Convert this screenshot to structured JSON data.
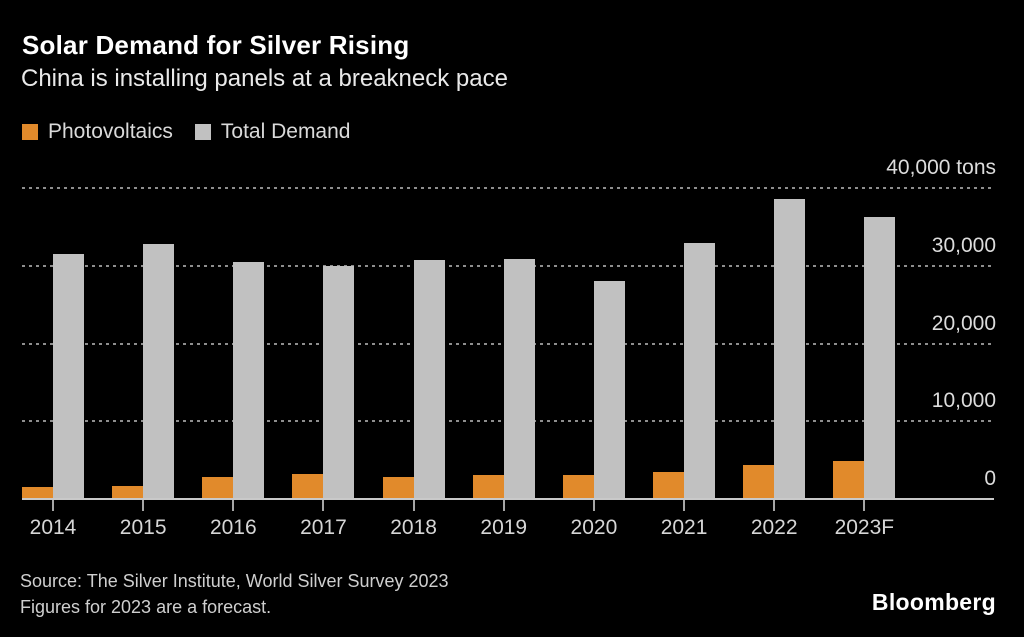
{
  "header": {
    "title": "Solar Demand for Silver Rising",
    "subtitle": "China is installing panels at a breakneck pace"
  },
  "legend": {
    "items": [
      {
        "label": "Photovoltaics",
        "color": "#E18A2B"
      },
      {
        "label": "Total Demand",
        "color": "#C1C1C1"
      }
    ]
  },
  "chart_data": {
    "type": "bar",
    "title": "Solar Demand for Silver Rising",
    "subtitle": "China is installing panels at a breakneck pace",
    "unit": "tons",
    "categories": [
      "2014",
      "2015",
      "2016",
      "2017",
      "2018",
      "2019",
      "2020",
      "2021",
      "2022",
      "2023F"
    ],
    "series": [
      {
        "name": "Photovoltaics",
        "color": "#E18A2B",
        "values": [
          1500,
          1700,
          2900,
          3200,
          2900,
          3100,
          3100,
          3500,
          4400,
          4900
        ]
      },
      {
        "name": "Total Demand",
        "color": "#C1C1C1",
        "values": [
          31500,
          32800,
          30500,
          30000,
          30800,
          30900,
          28100,
          32900,
          38600,
          36300
        ]
      }
    ],
    "ylim": [
      0,
      40000
    ],
    "yticks": [
      {
        "value": 0,
        "label": "0"
      },
      {
        "value": 10000,
        "label": "10,000"
      },
      {
        "value": 20000,
        "label": "20,000"
      },
      {
        "value": 30000,
        "label": "30,000"
      },
      {
        "value": 40000,
        "label": "40,000 tons"
      }
    ],
    "grid": "horizontal-dashed",
    "legend_position": "top-left"
  },
  "footer": {
    "source": "Source: The Silver Institute, World Silver Survey 2023",
    "note": "Figures for 2023 are a forecast.",
    "brand": "Bloomberg"
  },
  "colors": {
    "background": "#000000",
    "photovoltaics": "#E18A2B",
    "total_demand": "#C1C1C1",
    "gridline": "#8e8e8e",
    "axis_line": "#c9c9c9",
    "text_primary": "#ffffff",
    "text_secondary": "#d6d6d6"
  }
}
